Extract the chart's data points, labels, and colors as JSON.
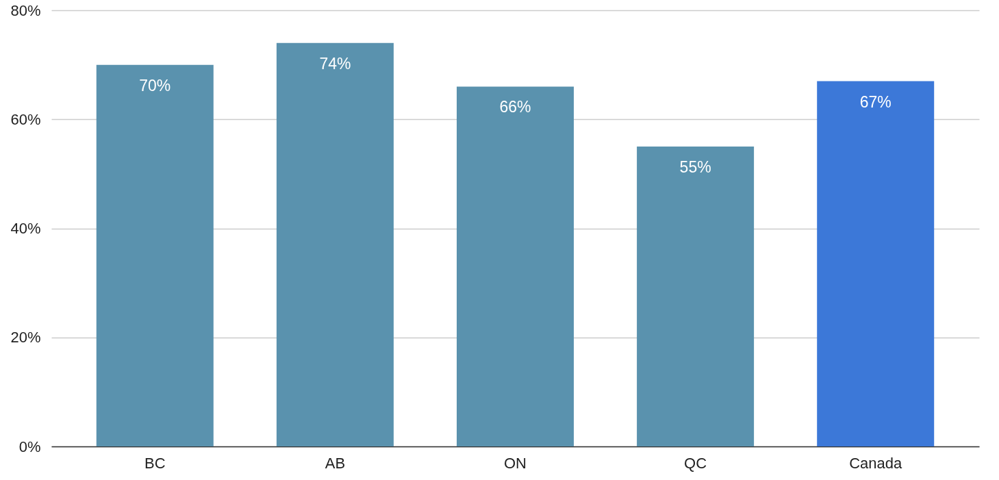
{
  "chart_data": {
    "type": "bar",
    "categories": [
      "BC",
      "AB",
      "ON",
      "QC",
      "Canada"
    ],
    "values": [
      70,
      74,
      66,
      55,
      67
    ],
    "colors": [
      "#5a92ae",
      "#5a92ae",
      "#5a92ae",
      "#5a92ae",
      "#3c78d8"
    ],
    "value_labels": [
      "70%",
      "74%",
      "66%",
      "55%",
      "67%"
    ],
    "ylim": [
      0,
      80
    ],
    "yticks": [
      {
        "value": 0,
        "label": "0%"
      },
      {
        "value": 20,
        "label": "20%"
      },
      {
        "value": 40,
        "label": "40%"
      },
      {
        "value": 60,
        "label": "60%"
      },
      {
        "value": 80,
        "label": "80%"
      }
    ],
    "grid": "y"
  }
}
